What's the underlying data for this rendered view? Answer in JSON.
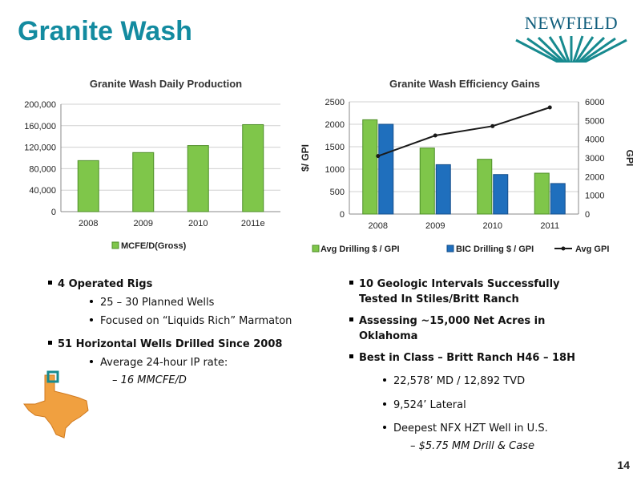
{
  "page": {
    "title": "Granite Wash",
    "logo_text": "NEWFIELD",
    "page_number": "14"
  },
  "colors": {
    "title": "#138ba0",
    "bar_green": "#7fc64a",
    "bar_blue": "#1f6fbd",
    "line": "#1a1a1a"
  },
  "chart_data": [
    {
      "type": "bar",
      "title": "Granite Wash Daily Production",
      "categories": [
        "2008",
        "2009",
        "2010",
        "2011e"
      ],
      "series": [
        {
          "name": "MCFE/D(Gross)",
          "values": [
            95000,
            110000,
            123000,
            162000
          ]
        }
      ],
      "ylim": [
        0,
        200000
      ],
      "yticks": [
        "0",
        "40,000",
        "80,000",
        "120,000",
        "160,000",
        "200,000"
      ],
      "ytick_values": [
        0,
        40000,
        80000,
        120000,
        160000,
        200000
      ],
      "grid": true,
      "legend": "bottom"
    },
    {
      "type": "bar",
      "title": "Granite Wash Efficiency Gains",
      "categories": [
        "2008",
        "2009",
        "2010",
        "2011"
      ],
      "series": [
        {
          "name": "Avg Drilling $ / GPI",
          "values": [
            2100,
            1470,
            1220,
            910
          ],
          "axis": "left",
          "kind": "bar"
        },
        {
          "name": "BIC Drilling $ / GPI",
          "values": [
            2000,
            1100,
            880,
            680
          ],
          "axis": "left",
          "kind": "bar"
        },
        {
          "name": "Avg GPI",
          "values": [
            3100,
            4200,
            4700,
            5700
          ],
          "axis": "right",
          "kind": "line"
        }
      ],
      "ylabel": "$/ GPI",
      "y2label": "GPI",
      "ylim": [
        0,
        2500
      ],
      "y2lim": [
        0,
        6000
      ],
      "yticks": [
        "0",
        "500",
        "1000",
        "1500",
        "2000",
        "2500"
      ],
      "ytick_values": [
        0,
        500,
        1000,
        1500,
        2000,
        2500
      ],
      "y2ticks": [
        "0",
        "1000",
        "2000",
        "3000",
        "4000",
        "5000",
        "6000"
      ],
      "y2tick_values": [
        0,
        1000,
        2000,
        3000,
        4000,
        5000,
        6000
      ],
      "grid": true,
      "legend": "bottom"
    }
  ],
  "left_bullets": {
    "b1": "4 Operated Rigs",
    "b1a": "25 – 30 Planned Wells",
    "b1b": "Focused on “Liquids Rich” Marmaton",
    "b2": "51 Horizontal Wells Drilled Since 2008",
    "b2a": "Average 24-hour IP rate:",
    "b2a_i": "–  16 MMCFE/D"
  },
  "right_bullets": {
    "b1_l1": "10 Geologic Intervals Successfully",
    "b1_l2": "Tested In Stiles/Britt Ranch",
    "b2_l1": "Assessing ~15,000 Net Acres in",
    "b2_l2": "Oklahoma",
    "b3": "Best in Class – Britt Ranch H46 – 18H",
    "b3a": "22,578’ MD / 12,892 TVD",
    "b3b": "9,524’ Lateral",
    "b3c": "Deepest NFX HZT Well in U.S.",
    "b3c_i": "–  $5.75 MM Drill & Case"
  }
}
